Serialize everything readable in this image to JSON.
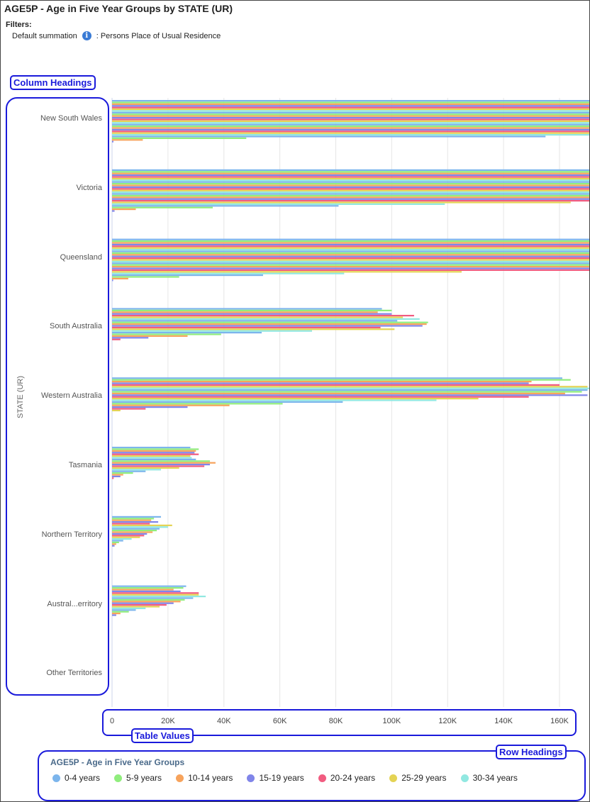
{
  "header": {
    "title": "AGE5P - Age in Five Year Groups by STATE (UR)",
    "filters_label": "Filters:",
    "filter_name": "Default summation",
    "filter_value": ": Persons Place of Usual Residence"
  },
  "callouts": {
    "column_headings": "Column Headings",
    "table_values": "Table Values",
    "row_headings": "Row Headings"
  },
  "icons": {
    "info": "info-icon"
  },
  "chart_data": {
    "type": "bar",
    "orientation": "horizontal",
    "title": "AGE5P - Age in Five Year Groups by STATE (UR)",
    "ylabel": "STATE (UR)",
    "xlabel": "",
    "xlim": [
      0,
      170000
    ],
    "x_ticks": [
      0,
      20000,
      40000,
      60000,
      80000,
      100000,
      120000,
      140000,
      160000
    ],
    "x_tick_labels": [
      "0",
      "20K",
      "40K",
      "60K",
      "80K",
      "100K",
      "120K",
      "140K",
      "160K"
    ],
    "grid": true,
    "legend_placement": "bottom",
    "legend_title": "AGE5P - Age in Five Year Groups",
    "categories": [
      "New South Wales",
      "Victoria",
      "Queensland",
      "South Australia",
      "Western Australia",
      "Tasmania",
      "Northern Territory",
      "Austral...erritory",
      "Other Territories"
    ],
    "series": [
      {
        "name": "0-4 years",
        "color": "#7cb5ec"
      },
      {
        "name": "5-9 years",
        "color": "#90ed7d"
      },
      {
        "name": "10-14 years",
        "color": "#f7a35c"
      },
      {
        "name": "15-19 years",
        "color": "#8085e9"
      },
      {
        "name": "20-24 years",
        "color": "#f15c80"
      },
      {
        "name": "25-29 years",
        "color": "#e4d354"
      },
      {
        "name": "30-34 years",
        "color": "#91e8e1"
      }
    ],
    "bar_values": [
      [
        172000,
        172000,
        172000,
        172000,
        172000,
        172000,
        172000,
        172000,
        172000,
        172000,
        172000,
        172000,
        172000,
        172000,
        172000,
        172000,
        172000,
        172000,
        172000,
        172000,
        172000,
        155000,
        48000,
        11000,
        500
      ],
      [
        172000,
        172000,
        172000,
        172000,
        172000,
        172000,
        172000,
        172000,
        172000,
        172000,
        172000,
        172000,
        172000,
        172000,
        172000,
        172000,
        172000,
        172000,
        172000,
        164000,
        119000,
        81000,
        36000,
        8500,
        900
      ],
      [
        172000,
        172000,
        172000,
        172000,
        172000,
        172000,
        172000,
        172000,
        172000,
        172000,
        172000,
        172000,
        172000,
        172000,
        172000,
        172000,
        172000,
        172000,
        172000,
        125000,
        83000,
        54000,
        24000,
        5800,
        400
      ],
      [
        96500,
        100000,
        95000,
        100000,
        108000,
        104000,
        110000,
        102000,
        113000,
        112500,
        111000,
        96000,
        101000,
        71500,
        53500,
        39000,
        27000,
        13000,
        3000,
        0,
        0,
        0,
        0,
        0,
        0
      ],
      [
        161000,
        164000,
        150000,
        149000,
        160000,
        170000,
        171000,
        170000,
        168000,
        162000,
        170000,
        149000,
        131000,
        116000,
        82500,
        61000,
        42000,
        27000,
        12000,
        3000,
        0,
        0,
        0,
        0,
        0
      ],
      [
        28000,
        31000,
        30000,
        29500,
        31000,
        28000,
        28500,
        30000,
        35000,
        37000,
        35000,
        33000,
        24000,
        17500,
        12000,
        7500,
        4000,
        3000,
        600,
        0,
        0,
        0,
        0,
        0,
        0
      ],
      [
        17500,
        15000,
        14000,
        16500,
        13500,
        21500,
        20000,
        17000,
        16000,
        14500,
        12500,
        11500,
        10000,
        7000,
        4000,
        2500,
        1500,
        900,
        0,
        0,
        0,
        0,
        0,
        0,
        0
      ],
      [
        26500,
        25500,
        22000,
        24500,
        31000,
        31000,
        33500,
        29000,
        26000,
        24500,
        22000,
        19500,
        17000,
        12000,
        8500,
        6000,
        3000,
        1500,
        0,
        0,
        0,
        0,
        0,
        0,
        0
      ],
      []
    ]
  },
  "legend": {
    "title": "AGE5P - Age in Five Year Groups",
    "items": [
      "0-4 years",
      "5-9 years",
      "10-14 years",
      "15-19 years",
      "20-24 years",
      "25-29 years",
      "30-34 years"
    ],
    "colors": [
      "#7cb5ec",
      "#90ed7d",
      "#f7a35c",
      "#8085e9",
      "#f15c80",
      "#e4d354",
      "#91e8e1"
    ]
  },
  "colors": {
    "callout": "#1a1adb",
    "grid": "#e6e6e6",
    "axis": "#ccd6eb"
  }
}
